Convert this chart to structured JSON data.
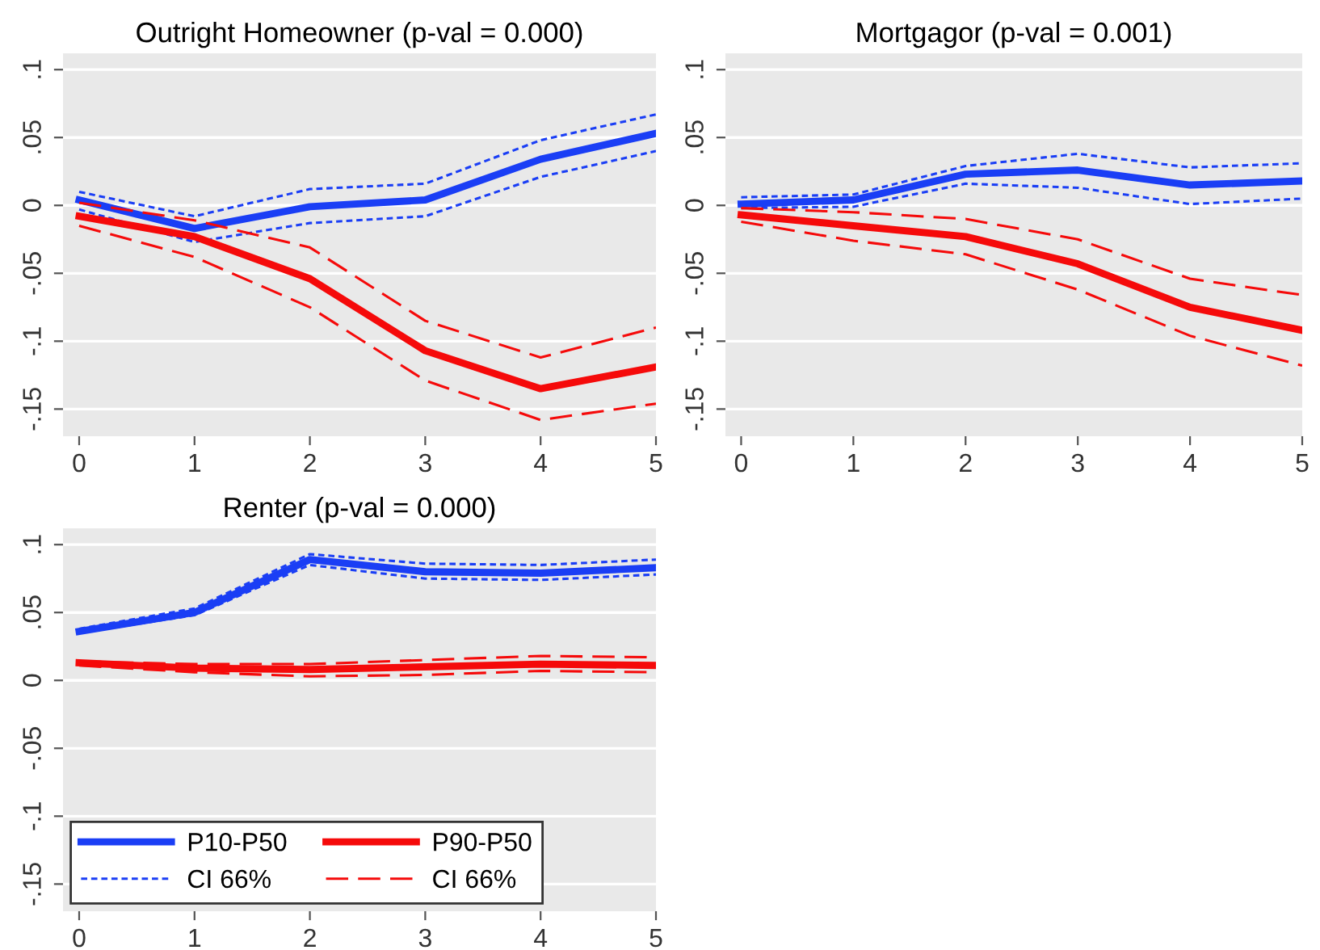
{
  "chart_data": [
    {
      "type": "line",
      "title": "Outright Homeowner (p-val = 0.000)",
      "x": [
        0,
        1,
        2,
        3,
        4,
        5
      ],
      "xlim": [
        -0.14,
        5
      ],
      "xticks": [
        0,
        1,
        2,
        3,
        4,
        5
      ],
      "ylim": [
        -0.17,
        0.112
      ],
      "yticks": [
        {
          "value": -0.15,
          "label": "-.15"
        },
        {
          "value": -0.1,
          "label": "-.1"
        },
        {
          "value": -0.05,
          "label": "-.05"
        },
        {
          "value": 0,
          "label": "0"
        },
        {
          "value": 0.05,
          "label": ".05"
        },
        {
          "value": 0.1,
          "label": ".1"
        }
      ],
      "grid": "y",
      "legend": false,
      "series": [
        {
          "color": "#1a3ef5",
          "line_style": "solid",
          "values": [
            0.004,
            -0.017,
            -0.001,
            0.004,
            0.034,
            0.053
          ]
        },
        {
          "color": "#1a3ef5",
          "line_style": "dotted",
          "values": [
            0.01,
            -0.008,
            0.012,
            0.016,
            0.048,
            0.067
          ]
        },
        {
          "color": "#1a3ef5",
          "line_style": "dotted",
          "values": [
            -0.003,
            -0.027,
            -0.013,
            -0.008,
            0.021,
            0.04
          ]
        },
        {
          "color": "#f50a0a",
          "line_style": "solid",
          "values": [
            -0.008,
            -0.023,
            -0.054,
            -0.107,
            -0.135,
            -0.119
          ]
        },
        {
          "color": "#f50a0a",
          "line_style": "dashed",
          "values": [
            0.002,
            -0.011,
            -0.031,
            -0.085,
            -0.112,
            -0.09
          ]
        },
        {
          "color": "#f50a0a",
          "line_style": "dashed",
          "values": [
            -0.015,
            -0.038,
            -0.075,
            -0.129,
            -0.158,
            -0.146
          ]
        }
      ]
    },
    {
      "type": "line",
      "title": "Mortgagor (p-val = 0.001)",
      "x": [
        0,
        1,
        2,
        3,
        4,
        5
      ],
      "xlim": [
        -0.14,
        5
      ],
      "xticks": [
        0,
        1,
        2,
        3,
        4,
        5
      ],
      "ylim": [
        -0.17,
        0.112
      ],
      "yticks": [
        {
          "value": -0.15,
          "label": "-.15"
        },
        {
          "value": -0.1,
          "label": "-.1"
        },
        {
          "value": -0.05,
          "label": "-.05"
        },
        {
          "value": 0,
          "label": "0"
        },
        {
          "value": 0.05,
          "label": ".05"
        },
        {
          "value": 0.1,
          "label": ".1"
        }
      ],
      "grid": "y",
      "legend": false,
      "series": [
        {
          "color": "#1a3ef5",
          "line_style": "solid",
          "values": [
            0.001,
            0.004,
            0.023,
            0.026,
            0.015,
            0.018
          ]
        },
        {
          "color": "#1a3ef5",
          "line_style": "dotted",
          "values": [
            0.006,
            0.008,
            0.029,
            0.038,
            0.028,
            0.031
          ]
        },
        {
          "color": "#1a3ef5",
          "line_style": "dotted",
          "values": [
            -0.002,
            -0.001,
            0.016,
            0.013,
            0.001,
            0.005
          ]
        },
        {
          "color": "#f50a0a",
          "line_style": "solid",
          "values": [
            -0.007,
            -0.015,
            -0.023,
            -0.043,
            -0.075,
            -0.092
          ]
        },
        {
          "color": "#f50a0a",
          "line_style": "dashed",
          "values": [
            -0.002,
            -0.005,
            -0.01,
            -0.025,
            -0.054,
            -0.066
          ]
        },
        {
          "color": "#f50a0a",
          "line_style": "dashed",
          "values": [
            -0.012,
            -0.026,
            -0.036,
            -0.062,
            -0.096,
            -0.118
          ]
        }
      ]
    },
    {
      "type": "line",
      "title": "Renter (p-val = 0.000)",
      "x": [
        0,
        1,
        2,
        3,
        4,
        5
      ],
      "xlim": [
        -0.14,
        5
      ],
      "xticks": [
        0,
        1,
        2,
        3,
        4,
        5
      ],
      "ylim": [
        -0.17,
        0.112
      ],
      "yticks": [
        {
          "value": -0.15,
          "label": "-.15"
        },
        {
          "value": -0.1,
          "label": "-.1"
        },
        {
          "value": -0.05,
          "label": "-.05"
        },
        {
          "value": 0,
          "label": "0"
        },
        {
          "value": 0.05,
          "label": ".05"
        },
        {
          "value": 0.1,
          "label": ".1"
        }
      ],
      "grid": "y",
      "legend": "bottom left",
      "series": [
        {
          "name": "P10-P50",
          "color": "#1a3ef5",
          "line_style": "solid",
          "values": [
            0.036,
            0.05,
            0.089,
            0.08,
            0.079,
            0.083
          ]
        },
        {
          "name": "CI 66%",
          "color": "#1a3ef5",
          "line_style": "dotted",
          "values": [
            0.038,
            0.053,
            0.093,
            0.086,
            0.085,
            0.089
          ]
        },
        {
          "color": "#1a3ef5",
          "line_style": "dotted",
          "values": [
            0.035,
            0.048,
            0.085,
            0.075,
            0.074,
            0.078
          ]
        },
        {
          "name": "P90-P50",
          "color": "#f50a0a",
          "line_style": "solid",
          "values": [
            0.013,
            0.009,
            0.008,
            0.01,
            0.012,
            0.011
          ]
        },
        {
          "name": "CI 66%",
          "color": "#f50a0a",
          "line_style": "dashed",
          "values": [
            0.014,
            0.012,
            0.012,
            0.015,
            0.018,
            0.017
          ]
        },
        {
          "color": "#f50a0a",
          "line_style": "dashed",
          "values": [
            0.011,
            0.006,
            0.003,
            0.004,
            0.007,
            0.006
          ]
        }
      ]
    }
  ]
}
